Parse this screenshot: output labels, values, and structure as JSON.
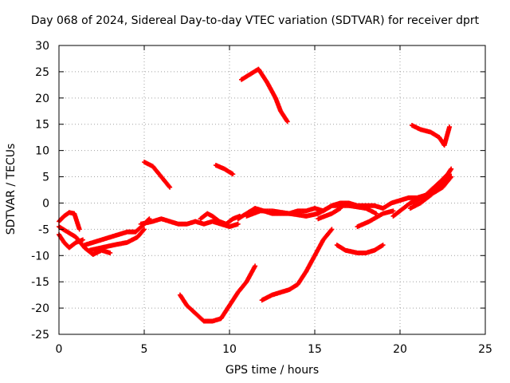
{
  "chart_data": {
    "type": "scatter",
    "title": "Day 068 of 2024, Sidereal Day-to-day VTEC variation (SDTVAR) for receiver dprt",
    "xlabel": "GPS time / hours",
    "ylabel": "SDTVAR / TECUs",
    "xlim": [
      0,
      25
    ],
    "ylim": [
      -25,
      30
    ],
    "xticks": [
      0,
      5,
      10,
      15,
      20,
      25
    ],
    "yticks": [
      -25,
      -20,
      -15,
      -10,
      -5,
      0,
      5,
      10,
      15,
      20,
      25,
      30
    ],
    "grid": true,
    "marker": "plus",
    "color": "#ff0000",
    "series": [
      {
        "points": [
          [
            0.0,
            -3.5
          ],
          [
            0.3,
            -2.5
          ],
          [
            0.6,
            -1.8
          ],
          [
            0.9,
            -2.0
          ],
          [
            1.2,
            -5.0
          ]
        ]
      },
      {
        "points": [
          [
            0.0,
            -6.0
          ],
          [
            0.3,
            -7.5
          ],
          [
            0.6,
            -8.5
          ],
          [
            1.0,
            -7.5
          ],
          [
            1.4,
            -7.0
          ]
        ]
      },
      {
        "points": [
          [
            0.0,
            -4.5
          ],
          [
            0.5,
            -5.5
          ],
          [
            1.0,
            -6.5
          ],
          [
            1.5,
            -8.5
          ],
          [
            2.0,
            -9.8
          ],
          [
            2.5,
            -9.0
          ],
          [
            3.0,
            -9.5
          ]
        ]
      },
      {
        "points": [
          [
            1.5,
            -8.0
          ],
          [
            2.0,
            -7.5
          ],
          [
            2.5,
            -7.0
          ],
          [
            3.0,
            -6.5
          ],
          [
            3.5,
            -6.0
          ],
          [
            4.0,
            -5.5
          ],
          [
            4.5,
            -5.5
          ],
          [
            5.0,
            -4.0
          ],
          [
            5.3,
            -3.0
          ]
        ]
      },
      {
        "points": [
          [
            1.8,
            -9.0
          ],
          [
            2.5,
            -8.5
          ],
          [
            3.2,
            -8.0
          ],
          [
            4.0,
            -7.5
          ],
          [
            4.6,
            -6.5
          ],
          [
            5.0,
            -5.0
          ]
        ]
      },
      {
        "points": [
          [
            4.8,
            -4.0
          ],
          [
            5.5,
            -3.5
          ],
          [
            6.0,
            -3.0
          ],
          [
            6.5,
            -3.5
          ],
          [
            7.0,
            -4.0
          ],
          [
            7.5,
            -4.0
          ],
          [
            8.0,
            -3.5
          ],
          [
            8.5,
            -4.0
          ],
          [
            9.0,
            -3.5
          ],
          [
            9.5,
            -4.0
          ],
          [
            10.0,
            -4.5
          ],
          [
            10.5,
            -4.0
          ]
        ]
      },
      {
        "points": [
          [
            8.3,
            -3.0
          ],
          [
            8.7,
            -2.0
          ],
          [
            9.0,
            -2.5
          ],
          [
            9.4,
            -3.5
          ],
          [
            9.8,
            -4.0
          ],
          [
            10.2,
            -3.0
          ],
          [
            10.6,
            -2.5
          ]
        ]
      },
      {
        "points": [
          [
            10.5,
            -3.0
          ],
          [
            11.0,
            -2.0
          ],
          [
            11.5,
            -1.0
          ],
          [
            12.0,
            -1.5
          ],
          [
            12.5,
            -2.0
          ],
          [
            13.0,
            -2.0
          ],
          [
            13.5,
            -2.0
          ],
          [
            14.0,
            -1.5
          ],
          [
            14.5,
            -1.5
          ],
          [
            15.0,
            -1.0
          ],
          [
            15.5,
            -1.5
          ],
          [
            16.0,
            -0.5
          ],
          [
            16.5,
            0.0
          ],
          [
            17.0,
            0.0
          ],
          [
            17.5,
            -0.5
          ],
          [
            18.0,
            -0.5
          ],
          [
            18.5,
            -0.5
          ],
          [
            19.0,
            -1.0
          ],
          [
            19.5,
            0.0
          ],
          [
            20.0,
            0.5
          ],
          [
            20.5,
            1.0
          ],
          [
            21.0,
            1.0
          ],
          [
            21.5,
            1.5
          ],
          [
            22.0,
            2.0
          ],
          [
            22.5,
            3.0
          ],
          [
            23.0,
            5.0
          ]
        ]
      },
      {
        "points": [
          [
            11.0,
            -2.5
          ],
          [
            11.8,
            -1.5
          ],
          [
            12.5,
            -1.5
          ],
          [
            13.5,
            -2.0
          ],
          [
            14.5,
            -2.5
          ],
          [
            15.2,
            -2.0
          ],
          [
            16.0,
            -0.5
          ],
          [
            17.0,
            -0.5
          ],
          [
            18.0,
            -1.0
          ],
          [
            18.6,
            -2.0
          ]
        ]
      },
      {
        "points": [
          [
            15.2,
            -3.0
          ],
          [
            16.0,
            -2.0
          ],
          [
            16.5,
            -1.0
          ]
        ]
      },
      {
        "points": [
          [
            17.5,
            -4.5
          ],
          [
            18.2,
            -3.5
          ],
          [
            19.0,
            -2.0
          ],
          [
            19.6,
            -1.5
          ]
        ]
      },
      {
        "points": [
          [
            19.6,
            -2.5
          ],
          [
            20.0,
            -1.5
          ],
          [
            20.6,
            0.0
          ],
          [
            21.0,
            0.5
          ],
          [
            21.5,
            1.5
          ],
          [
            22.0,
            3.0
          ],
          [
            22.5,
            4.5
          ],
          [
            22.8,
            5.5
          ],
          [
            23.0,
            6.5
          ]
        ]
      },
      {
        "points": [
          [
            20.6,
            -1.0
          ],
          [
            21.2,
            0.0
          ],
          [
            21.8,
            1.5
          ],
          [
            22.3,
            3.0
          ],
          [
            22.9,
            5.5
          ]
        ]
      },
      {
        "points": [
          [
            5.0,
            7.8
          ],
          [
            5.5,
            7.0
          ],
          [
            6.0,
            5.0
          ],
          [
            6.5,
            3.0
          ]
        ]
      },
      {
        "points": [
          [
            9.2,
            7.2
          ],
          [
            9.7,
            6.5
          ],
          [
            10.2,
            5.5
          ]
        ]
      },
      {
        "points": [
          [
            10.7,
            23.5
          ],
          [
            11.2,
            24.5
          ],
          [
            11.7,
            25.5
          ],
          [
            12.2,
            23.0
          ],
          [
            12.7,
            20.0
          ],
          [
            13.0,
            17.5
          ],
          [
            13.4,
            15.5
          ]
        ]
      },
      {
        "points": [
          [
            20.7,
            14.8
          ],
          [
            21.2,
            14.0
          ],
          [
            21.8,
            13.5
          ],
          [
            22.3,
            12.5
          ],
          [
            22.6,
            11.0
          ],
          [
            22.9,
            14.5
          ]
        ]
      },
      {
        "points": [
          [
            7.1,
            -17.5
          ],
          [
            7.5,
            -19.5
          ],
          [
            8.0,
            -21.0
          ],
          [
            8.5,
            -22.5
          ],
          [
            9.0,
            -22.5
          ],
          [
            9.5,
            -22.0
          ],
          [
            10.0,
            -19.5
          ],
          [
            10.5,
            -17.0
          ],
          [
            11.0,
            -15.0
          ],
          [
            11.5,
            -12.0
          ]
        ]
      },
      {
        "points": [
          [
            11.9,
            -18.5
          ],
          [
            12.5,
            -17.5
          ],
          [
            13.0,
            -17.0
          ],
          [
            13.5,
            -16.5
          ],
          [
            14.0,
            -15.5
          ],
          [
            14.5,
            -13.0
          ],
          [
            15.0,
            -10.0
          ],
          [
            15.5,
            -7.0
          ],
          [
            16.0,
            -5.0
          ]
        ]
      },
      {
        "points": [
          [
            16.3,
            -8.0
          ],
          [
            16.8,
            -9.0
          ],
          [
            17.5,
            -9.5
          ],
          [
            18.0,
            -9.5
          ],
          [
            18.5,
            -9.0
          ],
          [
            19.0,
            -8.0
          ]
        ]
      }
    ]
  }
}
